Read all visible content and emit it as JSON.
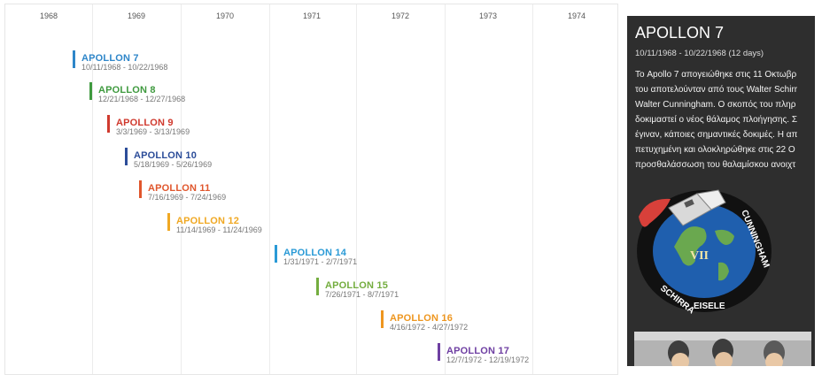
{
  "timeline": {
    "years": [
      "1968",
      "1969",
      "1970",
      "1971",
      "1972",
      "1973",
      "1974"
    ],
    "missions": [
      {
        "name": "APOLLON 7",
        "dates": "10/11/1968 - 10/22/1968",
        "color": "#2e86c9"
      },
      {
        "name": "APOLLON 8",
        "dates": "12/21/1968 - 12/27/1968",
        "color": "#3f9a3f"
      },
      {
        "name": "APOLLON 9",
        "dates": "3/3/1969 - 3/13/1969",
        "color": "#d03a2e"
      },
      {
        "name": "APOLLON 10",
        "dates": "5/18/1969 - 5/26/1969",
        "color": "#2c4d99"
      },
      {
        "name": "APOLLON 11",
        "dates": "7/16/1969 - 7/24/1969",
        "color": "#e0562c"
      },
      {
        "name": "APOLLON 12",
        "dates": "11/14/1969 - 11/24/1969",
        "color": "#f0a823"
      },
      {
        "name": "APOLLON 14",
        "dates": "1/31/1971 - 2/7/1971",
        "color": "#2a9ad6"
      },
      {
        "name": "APOLLON 15",
        "dates": "7/26/1971 - 8/7/1971",
        "color": "#74ad3f"
      },
      {
        "name": "APOLLON 16",
        "dates": "4/16/1972 - 4/27/1972",
        "color": "#ee961f"
      },
      {
        "name": "APOLLON 17",
        "dates": "12/7/1972 - 12/19/1972",
        "color": "#6e3fa2"
      }
    ]
  },
  "detail": {
    "title": "APOLLON 7",
    "dates": "10/11/1968 - 10/22/1968 (12 days)",
    "lines": [
      "Το Apollo 7 απογειώθηκε στις 11 Οκτωβρ",
      "του αποτελούνταν από τους Walter Schirr",
      "Walter Cunningham. Ο σκοπός του πληρ",
      "δοκιμαστεί ο νέος θάλαμος πλοήγησης. Σ",
      "έγιναν, κάποιες σημαντικές δοκιμές. Η απ",
      "πετυχημένη και ολοκληρώθηκε στις 22 Ο",
      "προσθαλάσσωση του θαλαμίσκου ανοιχτ"
    ],
    "patch": {
      "text_top": "CUNNINGHAM",
      "text_left": "SCHIRRA",
      "text_bottom": "EISELE",
      "numeral": "VII"
    }
  }
}
